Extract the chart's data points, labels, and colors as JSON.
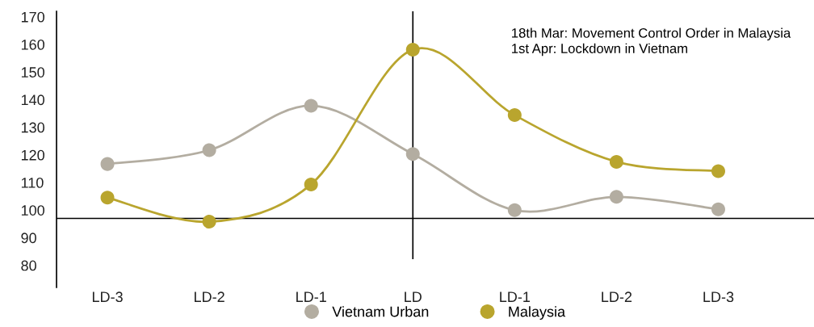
{
  "chart_data": {
    "type": "line",
    "categories": [
      "LD-3",
      "LD-2",
      "LD-1",
      "LD",
      "LD-1",
      "LD-2",
      "LD-3"
    ],
    "series": [
      {
        "name": "Vietnam Urban",
        "color": "#b3ada1",
        "values": [
          116.7,
          121.7,
          137.8,
          120.3,
          100.0,
          104.8,
          100.3
        ]
      },
      {
        "name": "Malaysia",
        "color": "#b9a52e",
        "values": [
          104.5,
          95.8,
          109.3,
          158.1,
          134.4,
          117.5,
          114.1
        ]
      }
    ],
    "ylim": [
      72,
      172
    ],
    "yticks": [
      80,
      90,
      100,
      110,
      120,
      130,
      140,
      150,
      160,
      170
    ],
    "ref_lines": [
      {
        "axis": "y",
        "value": 97,
        "color": "#000000"
      },
      {
        "axis": "x",
        "value": "LD",
        "color": "#000000"
      }
    ],
    "annotations": [
      "18th Mar: Movement Control Order in Malaysia\n1st Apr: Lockdown in Vietnam"
    ],
    "marker": "circle",
    "legend": "bottom",
    "grid": false
  }
}
